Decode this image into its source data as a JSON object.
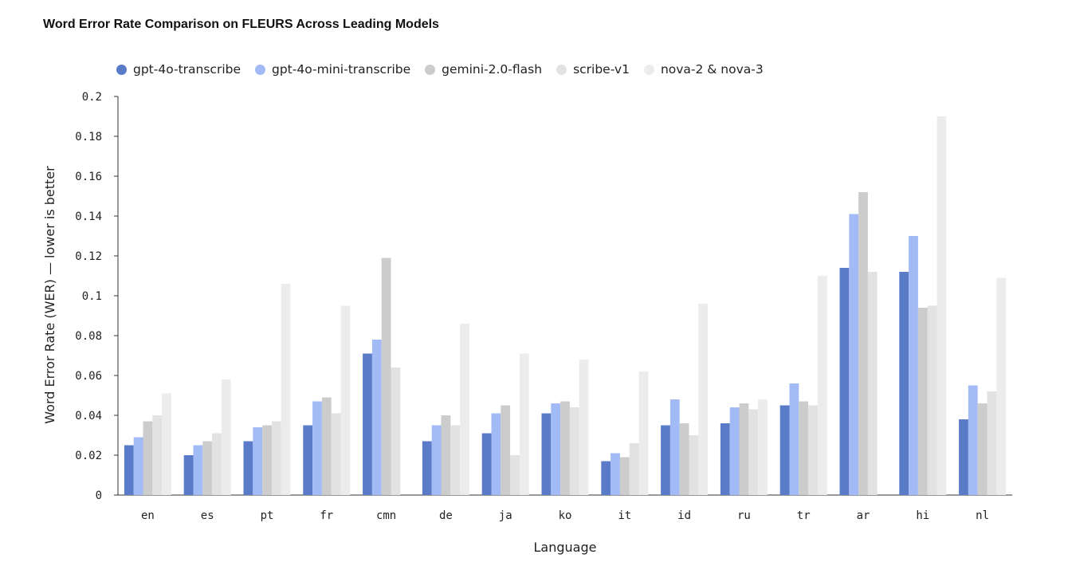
{
  "chart_data": {
    "type": "bar",
    "title": "Word Error Rate Comparison on FLEURS Across Leading Models",
    "xlabel": "Language",
    "ylabel": "Word Error Rate (WER) — lower is better",
    "ylim": [
      0,
      0.2
    ],
    "yticks": [
      "0",
      "0.02",
      "0.04",
      "0.06",
      "0.08",
      "0.1",
      "0.12",
      "0.14",
      "0.16",
      "0.18",
      "0.2"
    ],
    "legend_position": "top-left",
    "categories": [
      "en",
      "es",
      "pt",
      "fr",
      "cmn",
      "de",
      "ja",
      "ko",
      "it",
      "id",
      "ru",
      "tr",
      "ar",
      "hi",
      "nl"
    ],
    "series": [
      {
        "name": "gpt-4o-transcribe",
        "color": "#5a7bc8",
        "values": [
          0.025,
          0.02,
          0.027,
          0.035,
          0.071,
          0.027,
          0.031,
          0.041,
          0.017,
          0.035,
          0.036,
          0.045,
          0.114,
          0.112,
          0.038
        ]
      },
      {
        "name": "gpt-4o-mini-transcribe",
        "color": "#a2baf6",
        "values": [
          0.029,
          0.025,
          0.034,
          0.047,
          0.078,
          0.035,
          0.041,
          0.046,
          0.021,
          0.048,
          0.044,
          0.056,
          0.141,
          0.13,
          0.055
        ]
      },
      {
        "name": "gemini-2.0-flash",
        "color": "#cccccc",
        "values": [
          0.037,
          0.027,
          0.035,
          0.049,
          0.119,
          0.04,
          0.045,
          0.047,
          0.019,
          0.036,
          0.046,
          0.047,
          0.152,
          0.094,
          0.046
        ]
      },
      {
        "name": "scribe-v1",
        "color": "#e2e2e2",
        "values": [
          0.04,
          0.031,
          0.037,
          0.041,
          0.064,
          0.035,
          0.02,
          0.044,
          0.026,
          0.03,
          0.043,
          0.045,
          0.112,
          0.095,
          0.052
        ]
      },
      {
        "name": "nova-2 & nova-3",
        "color": "#ececec",
        "values": [
          0.051,
          0.058,
          0.106,
          0.095,
          0.0,
          0.086,
          0.071,
          0.068,
          0.062,
          0.096,
          0.048,
          0.11,
          0.0,
          0.19,
          0.109
        ]
      }
    ]
  }
}
